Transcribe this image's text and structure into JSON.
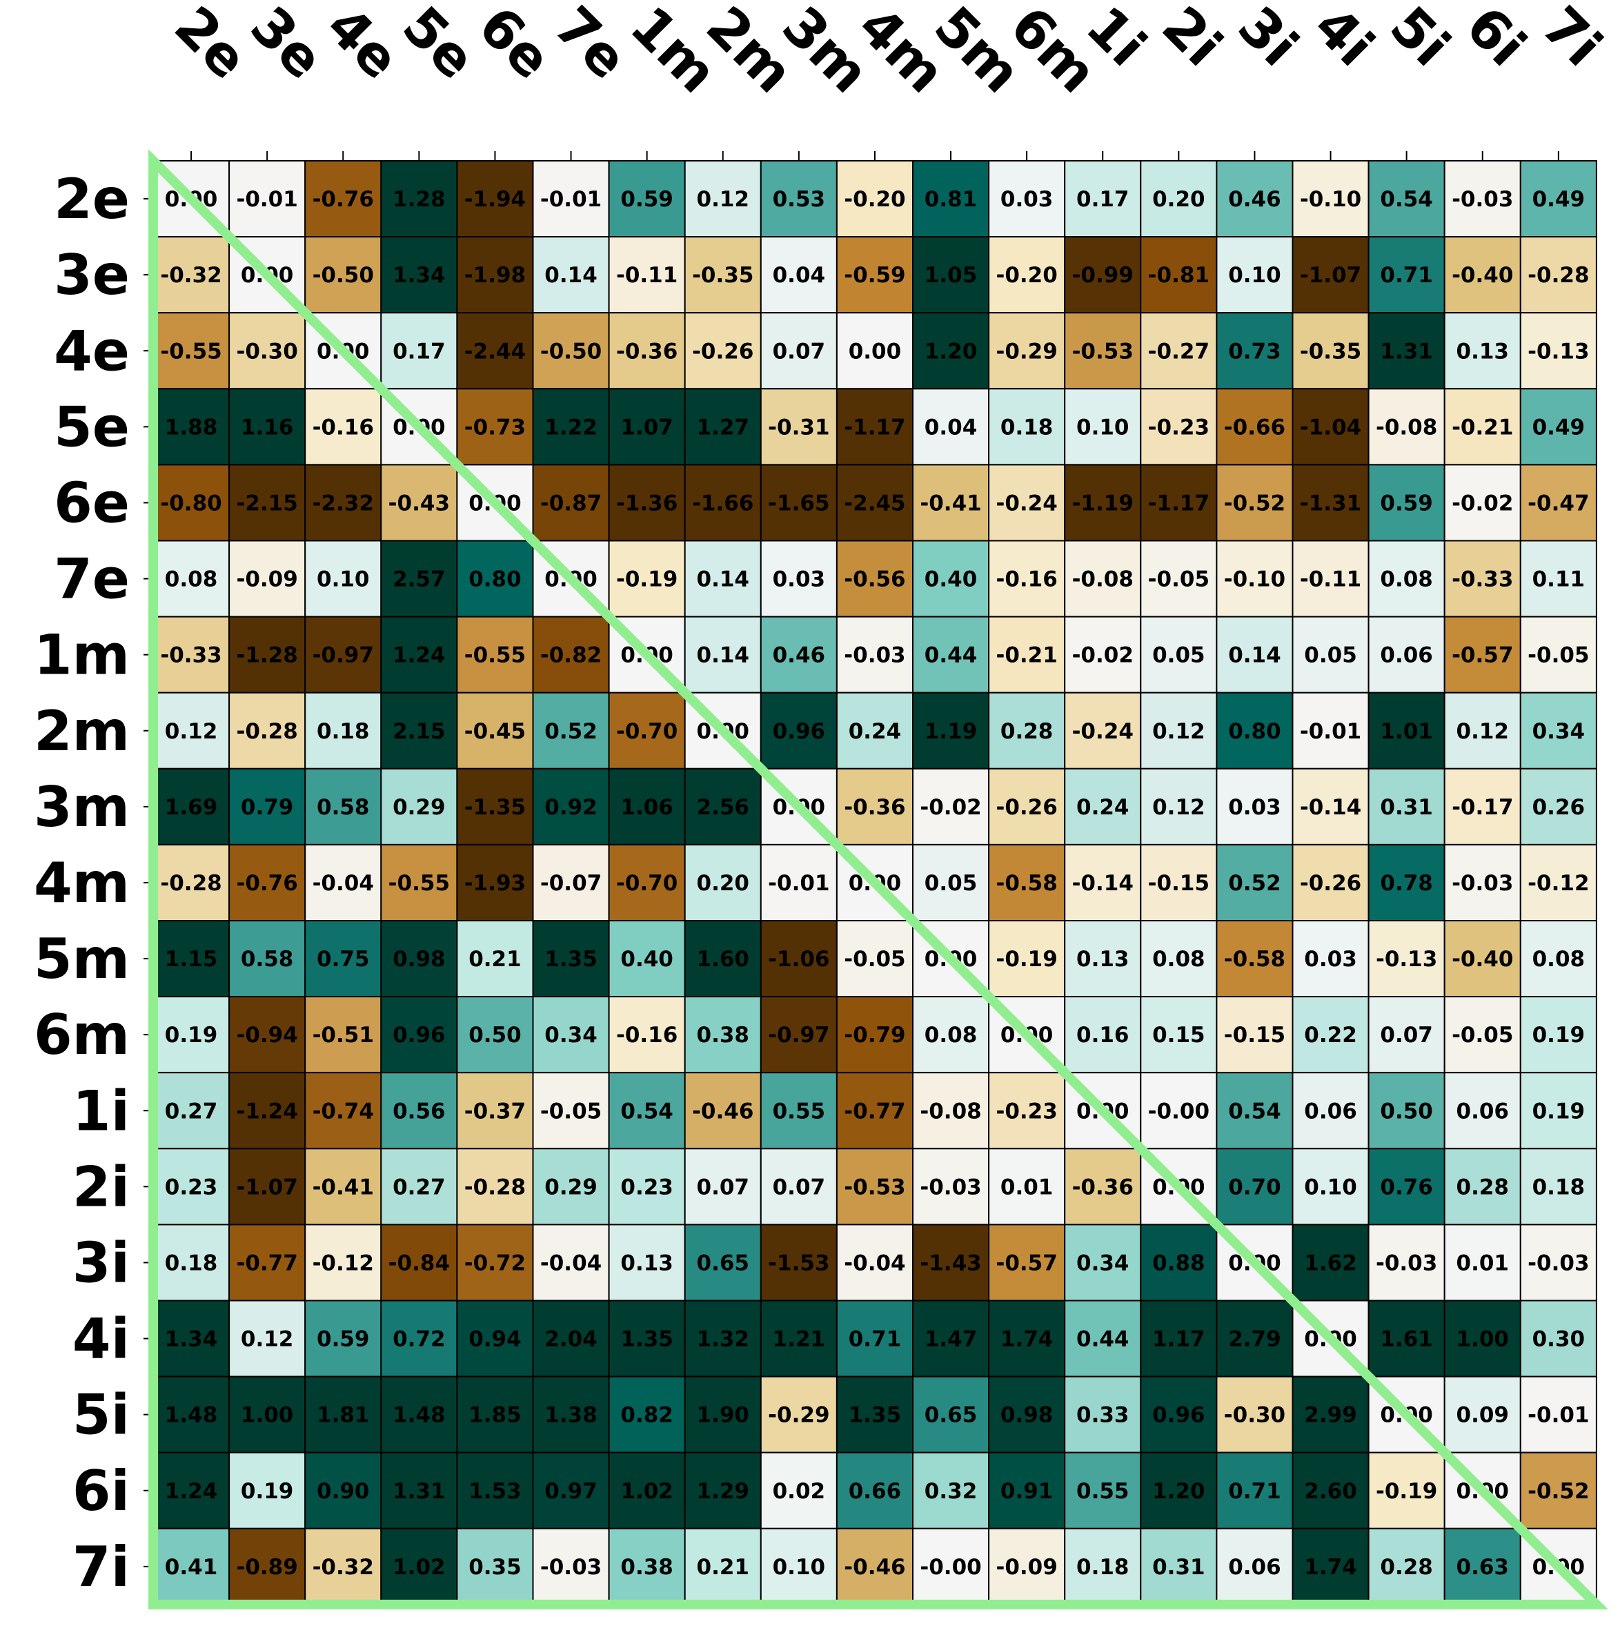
{
  "chart_data": {
    "type": "heatmap",
    "x_labels": [
      "2e",
      "3e",
      "4e",
      "5e",
      "6e",
      "7e",
      "1m",
      "2m",
      "3m",
      "4m",
      "5m",
      "6m",
      "1i",
      "2i",
      "3i",
      "4i",
      "5i",
      "6i",
      "7i"
    ],
    "y_labels": [
      "2e",
      "3e",
      "4e",
      "5e",
      "6e",
      "7e",
      "1m",
      "2m",
      "3m",
      "4m",
      "5m",
      "6m",
      "1i",
      "2i",
      "3i",
      "4i",
      "5i",
      "6i",
      "7i"
    ],
    "values": [
      [
        0.0,
        -0.01,
        -0.76,
        1.28,
        -1.94,
        -0.01,
        0.59,
        0.12,
        0.53,
        -0.2,
        0.81,
        0.03,
        0.17,
        0.2,
        0.46,
        -0.1,
        0.54,
        -0.03,
        0.49
      ],
      [
        -0.32,
        0.0,
        -0.5,
        1.34,
        -1.98,
        0.14,
        -0.11,
        -0.35,
        0.04,
        -0.59,
        1.05,
        -0.2,
        -0.99,
        -0.81,
        0.1,
        -1.07,
        0.71,
        -0.4,
        -0.28
      ],
      [
        -0.55,
        -0.3,
        0.0,
        0.17,
        -2.44,
        -0.5,
        -0.36,
        -0.26,
        0.07,
        0.0,
        1.2,
        -0.29,
        -0.53,
        -0.27,
        0.73,
        -0.35,
        1.31,
        0.13,
        -0.13
      ],
      [
        1.88,
        1.16,
        -0.16,
        0.0,
        -0.73,
        1.22,
        1.07,
        1.27,
        -0.31,
        -1.17,
        0.04,
        0.18,
        0.1,
        -0.23,
        -0.66,
        -1.04,
        -0.08,
        -0.21,
        0.49
      ],
      [
        -0.8,
        -2.15,
        -2.32,
        -0.43,
        0.0,
        -0.87,
        -1.36,
        -1.66,
        -1.65,
        -2.45,
        -0.41,
        -0.24,
        -1.19,
        -1.17,
        -0.52,
        -1.31,
        0.59,
        -0.02,
        -0.47
      ],
      [
        0.08,
        -0.09,
        0.1,
        2.57,
        0.8,
        0.0,
        -0.19,
        0.14,
        0.03,
        -0.56,
        0.4,
        -0.16,
        -0.08,
        -0.05,
        -0.1,
        -0.11,
        0.08,
        -0.33,
        0.11
      ],
      [
        -0.33,
        -1.28,
        -0.97,
        1.24,
        -0.55,
        -0.82,
        0.0,
        0.14,
        0.46,
        -0.03,
        0.44,
        -0.21,
        -0.02,
        0.05,
        0.14,
        0.05,
        0.06,
        -0.57,
        -0.05
      ],
      [
        0.12,
        -0.28,
        0.18,
        2.15,
        -0.45,
        0.52,
        -0.7,
        0.0,
        0.96,
        0.24,
        1.19,
        0.28,
        -0.24,
        0.12,
        0.8,
        -0.01,
        1.01,
        0.12,
        0.34
      ],
      [
        1.69,
        0.79,
        0.58,
        0.29,
        -1.35,
        0.92,
        1.06,
        2.56,
        0.0,
        -0.36,
        -0.02,
        -0.26,
        0.24,
        0.12,
        0.03,
        -0.14,
        0.31,
        -0.17,
        0.26
      ],
      [
        -0.28,
        -0.76,
        -0.04,
        -0.55,
        -1.93,
        -0.07,
        -0.7,
        0.2,
        -0.01,
        0.0,
        0.05,
        -0.58,
        -0.14,
        -0.15,
        0.52,
        -0.26,
        0.78,
        -0.03,
        -0.12
      ],
      [
        1.15,
        0.58,
        0.75,
        0.98,
        0.21,
        1.35,
        0.4,
        1.6,
        -1.06,
        -0.05,
        0.0,
        -0.19,
        0.13,
        0.08,
        -0.58,
        0.03,
        -0.13,
        -0.4,
        0.08
      ],
      [
        0.19,
        -0.94,
        -0.51,
        0.96,
        0.5,
        0.34,
        -0.16,
        0.38,
        -0.97,
        -0.79,
        0.08,
        0.0,
        0.16,
        0.15,
        -0.15,
        0.22,
        0.07,
        -0.05,
        0.19
      ],
      [
        0.27,
        -1.24,
        -0.74,
        0.56,
        -0.37,
        -0.05,
        0.54,
        -0.46,
        0.55,
        -0.77,
        -0.08,
        -0.23,
        0.0,
        -0.0,
        0.54,
        0.06,
        0.5,
        0.06,
        0.19
      ],
      [
        0.23,
        -1.07,
        -0.41,
        0.27,
        -0.28,
        0.29,
        0.23,
        0.07,
        0.07,
        -0.53,
        -0.03,
        0.01,
        -0.36,
        0.0,
        0.7,
        0.1,
        0.76,
        0.28,
        0.18
      ],
      [
        0.18,
        -0.77,
        -0.12,
        -0.84,
        -0.72,
        -0.04,
        0.13,
        0.65,
        -1.53,
        -0.04,
        -1.43,
        -0.57,
        0.34,
        0.88,
        0.0,
        1.62,
        -0.03,
        0.01,
        -0.03
      ],
      [
        1.34,
        0.12,
        0.59,
        0.72,
        0.94,
        2.04,
        1.35,
        1.32,
        1.21,
        0.71,
        1.47,
        1.74,
        0.44,
        1.17,
        2.79,
        0.0,
        1.61,
        1.0,
        0.3
      ],
      [
        1.48,
        1.0,
        1.81,
        1.48,
        1.85,
        1.38,
        0.82,
        1.9,
        -0.29,
        1.35,
        0.65,
        0.98,
        0.33,
        0.96,
        -0.3,
        2.99,
        0.0,
        0.09,
        -0.01
      ],
      [
        1.24,
        0.19,
        0.9,
        1.31,
        1.53,
        0.97,
        1.02,
        1.29,
        0.02,
        0.66,
        0.32,
        0.91,
        0.55,
        1.2,
        0.71,
        2.6,
        -0.19,
        0.0,
        -0.52
      ],
      [
        0.41,
        -0.89,
        -0.32,
        1.02,
        0.35,
        -0.03,
        0.38,
        0.21,
        0.1,
        -0.46,
        -0.0,
        -0.09,
        0.18,
        0.31,
        0.06,
        1.74,
        0.28,
        0.63,
        0.0
      ]
    ],
    "colormap": "BrBG",
    "vmin": -1,
    "vmax": 1,
    "highlight_color": "#90EE90",
    "legend": "none",
    "grid": true
  }
}
